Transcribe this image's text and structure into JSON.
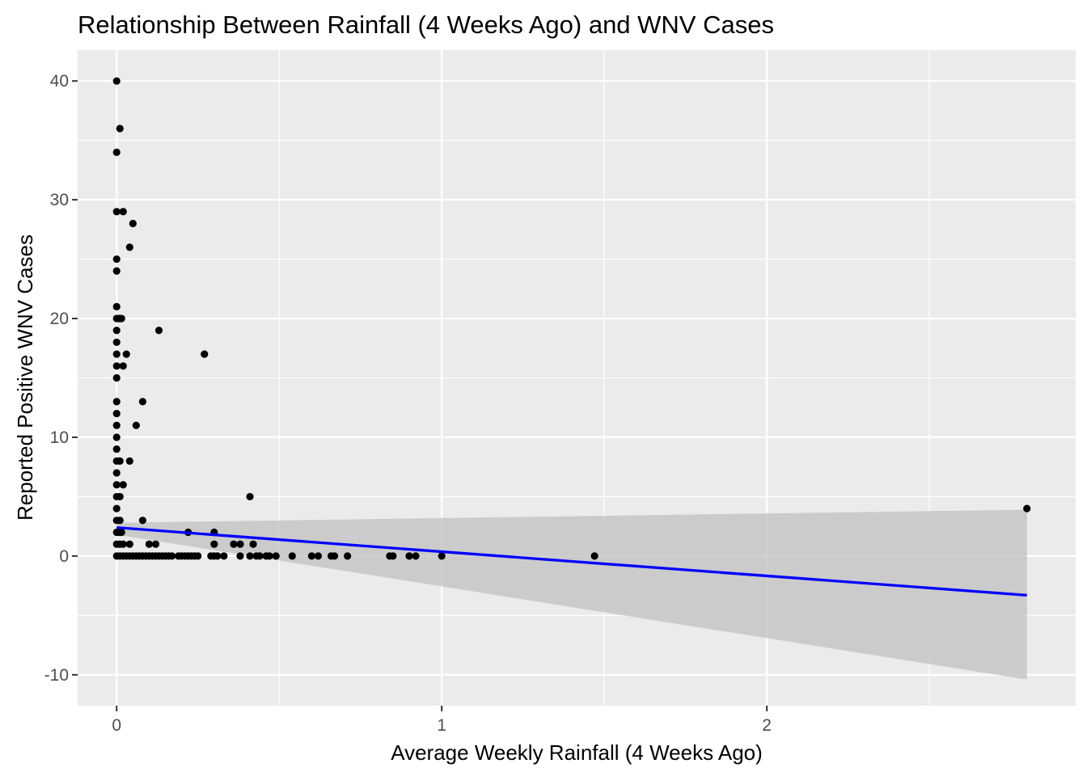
{
  "chart_data": {
    "type": "scatter",
    "title": "Relationship Between Rainfall (4 Weeks Ago) and WNV Cases",
    "xlabel": "Average Weekly Rainfall (4 Weeks Ago)",
    "ylabel": "Reported Positive WNV Cases",
    "xlim": [
      -0.12,
      2.95
    ],
    "ylim": [
      -12.6,
      42.6
    ],
    "x_ticks": [
      0,
      1,
      2
    ],
    "x_minor_ticks": [
      0.5,
      1.5,
      2.5
    ],
    "y_ticks": [
      -10,
      0,
      10,
      20,
      30,
      40
    ],
    "y_minor_ticks": [
      -5,
      5,
      15,
      25,
      35
    ],
    "grid": true,
    "legend": "none",
    "colors": {
      "panel": "#ebebeb",
      "grid": "#ffffff",
      "points": "#000000",
      "fit_line": "#0000ff",
      "confidence_band": "#c0c0c0"
    },
    "points": [
      [
        0,
        40
      ],
      [
        0.01,
        36
      ],
      [
        0,
        34
      ],
      [
        0,
        29
      ],
      [
        0.02,
        29
      ],
      [
        0.05,
        28
      ],
      [
        0.04,
        26
      ],
      [
        0,
        25
      ],
      [
        0,
        24
      ],
      [
        0,
        21
      ],
      [
        0,
        20
      ],
      [
        0.005,
        20
      ],
      [
        0.01,
        20
      ],
      [
        0.015,
        20
      ],
      [
        0,
        19
      ],
      [
        0.13,
        19
      ],
      [
        0,
        18
      ],
      [
        0,
        17
      ],
      [
        0.03,
        17
      ],
      [
        0.27,
        17
      ],
      [
        0,
        16
      ],
      [
        0.02,
        16
      ],
      [
        0,
        15
      ],
      [
        0,
        13
      ],
      [
        0.08,
        13
      ],
      [
        0,
        12
      ],
      [
        0,
        11
      ],
      [
        0.06,
        11
      ],
      [
        0,
        10
      ],
      [
        0,
        9
      ],
      [
        0,
        8
      ],
      [
        0.01,
        8
      ],
      [
        0.04,
        8
      ],
      [
        0,
        7
      ],
      [
        0,
        6
      ],
      [
        0.02,
        6
      ],
      [
        0,
        5
      ],
      [
        0.01,
        5
      ],
      [
        0.41,
        5
      ],
      [
        0,
        4
      ],
      [
        0,
        3
      ],
      [
        0.01,
        3
      ],
      [
        0.08,
        3
      ],
      [
        0,
        2
      ],
      [
        0.005,
        2
      ],
      [
        0.015,
        2
      ],
      [
        0.22,
        2
      ],
      [
        0.3,
        2
      ],
      [
        0,
        1
      ],
      [
        0.01,
        1
      ],
      [
        0.02,
        1
      ],
      [
        0.04,
        1
      ],
      [
        0.1,
        1
      ],
      [
        0.12,
        1
      ],
      [
        0.3,
        1
      ],
      [
        0.36,
        1
      ],
      [
        0.38,
        1
      ],
      [
        0.42,
        1
      ],
      [
        2.8,
        4
      ],
      [
        0,
        0
      ],
      [
        0.01,
        0
      ],
      [
        0.02,
        0
      ],
      [
        0.03,
        0
      ],
      [
        0.04,
        0
      ],
      [
        0.05,
        0
      ],
      [
        0.06,
        0
      ],
      [
        0.07,
        0
      ],
      [
        0.08,
        0
      ],
      [
        0.09,
        0
      ],
      [
        0.1,
        0
      ],
      [
        0.11,
        0
      ],
      [
        0.12,
        0
      ],
      [
        0.13,
        0
      ],
      [
        0.14,
        0
      ],
      [
        0.15,
        0
      ],
      [
        0.16,
        0
      ],
      [
        0.17,
        0
      ],
      [
        0.19,
        0
      ],
      [
        0.2,
        0
      ],
      [
        0.21,
        0
      ],
      [
        0.22,
        0
      ],
      [
        0.23,
        0
      ],
      [
        0.24,
        0
      ],
      [
        0.25,
        0
      ],
      [
        0.29,
        0
      ],
      [
        0.3,
        0
      ],
      [
        0.31,
        0
      ],
      [
        0.33,
        0
      ],
      [
        0.38,
        0
      ],
      [
        0.41,
        0
      ],
      [
        0.43,
        0
      ],
      [
        0.44,
        0
      ],
      [
        0.46,
        0
      ],
      [
        0.47,
        0
      ],
      [
        0.49,
        0
      ],
      [
        0.54,
        0
      ],
      [
        0.6,
        0
      ],
      [
        0.62,
        0
      ],
      [
        0.66,
        0
      ],
      [
        0.67,
        0
      ],
      [
        0.71,
        0
      ],
      [
        0.84,
        0
      ],
      [
        0.85,
        0
      ],
      [
        0.9,
        0
      ],
      [
        0.92,
        0
      ],
      [
        1.0,
        0
      ],
      [
        1.47,
        0
      ]
    ],
    "fit_line": {
      "x": [
        0,
        2.8
      ],
      "y": [
        2.4,
        -3.3
      ]
    },
    "confidence_band": {
      "x": [
        0,
        2.8
      ],
      "upper": [
        2.8,
        3.9
      ],
      "lower": [
        1.8,
        -10.4
      ]
    }
  }
}
